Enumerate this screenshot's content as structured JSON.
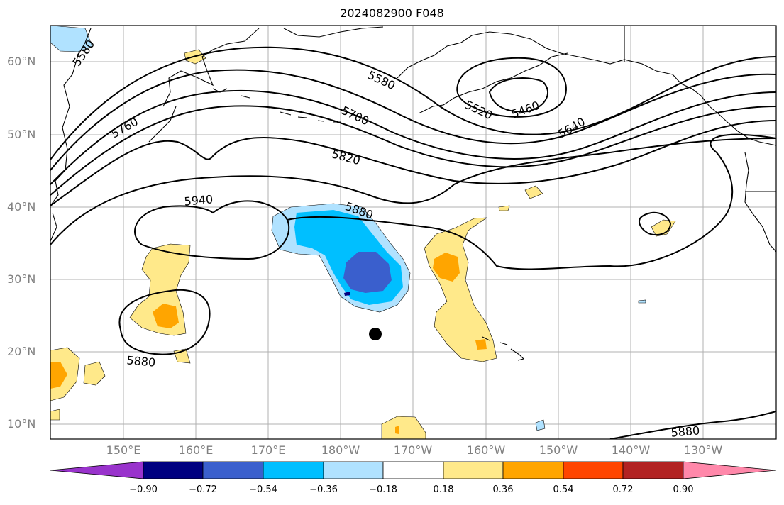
{
  "title": "2024082900 F048",
  "lat_labels": [
    "60°N",
    "50°N",
    "40°N",
    "30°N",
    "20°N",
    "10°N"
  ],
  "lon_labels": [
    "150°E",
    "160°E",
    "170°E",
    "180°W",
    "170°W",
    "160°W",
    "150°W",
    "140°W",
    "130°W"
  ],
  "contour_labels": [
    "5580",
    "5580",
    "5520",
    "5460",
    "5640",
    "5700",
    "5760",
    "5820",
    "5880",
    "5940",
    "5880",
    "5880"
  ],
  "colorbar": {
    "ticks": [
      "−0.90",
      "−0.72",
      "−0.54",
      "−0.36",
      "−0.18",
      "0.18",
      "0.36",
      "0.54",
      "0.72",
      "0.90"
    ],
    "colors": [
      "#9933cc",
      "#000080",
      "#3a5fcd",
      "#00bfff",
      "#b0e2ff",
      "#ffffff",
      "#ffe98a",
      "#ffa500",
      "#ff4500",
      "#b22222",
      "#ff88aa"
    ]
  },
  "storm_marker": {
    "lat": 22.5,
    "lon": "175°W"
  }
}
